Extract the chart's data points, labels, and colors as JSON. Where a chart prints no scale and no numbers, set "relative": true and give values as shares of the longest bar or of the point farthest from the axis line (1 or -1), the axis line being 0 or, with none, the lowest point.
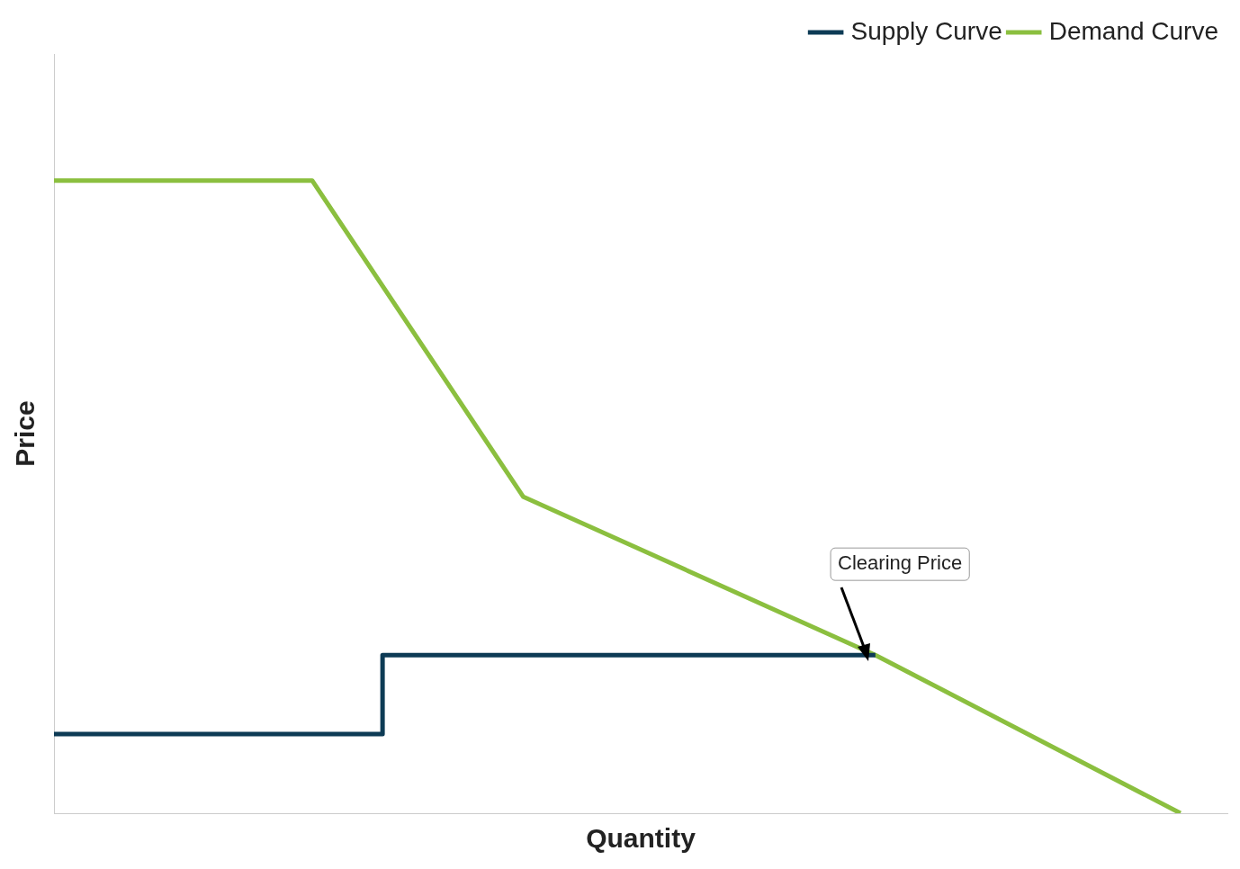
{
  "chart_data": {
    "type": "line",
    "xlabel": "Quantity",
    "ylabel": "Price",
    "relative": true,
    "legend": "top right",
    "grid": false,
    "categories": [
      null,
      null,
      null,
      null,
      null,
      null,
      null,
      null,
      null,
      null,
      null,
      null,
      null,
      null,
      null,
      null,
      null,
      null,
      null,
      null,
      null,
      null,
      null,
      null,
      null,
      null,
      null,
      null,
      null,
      null,
      null,
      null,
      null,
      null,
      null,
      null,
      null,
      null,
      null,
      null,
      null,
      null,
      null,
      null,
      null,
      null,
      null,
      null,
      null,
      null,
      null
    ],
    "series": [
      {
        "name": "Supply Curve",
        "type": "step",
        "color": "#0d3b55",
        "values": [
          0.125,
          null,
          null,
          null,
          null,
          null,
          null,
          null,
          null,
          null,
          null,
          null,
          null,
          null,
          0.25,
          null,
          null,
          null,
          null,
          null,
          null,
          null,
          null,
          null,
          null,
          null,
          null,
          null,
          null,
          null,
          null,
          null,
          null,
          null,
          null,
          0.25,
          null,
          null,
          null,
          null,
          null,
          null,
          null,
          null,
          null,
          null,
          null,
          null,
          null,
          null,
          null
        ]
      },
      {
        "name": "Demand Curve",
        "type": "line",
        "color": "#8bbf3f",
        "values": [
          1,
          null,
          null,
          null,
          null,
          null,
          null,
          null,
          null,
          null,
          null,
          1,
          null,
          null,
          null,
          null,
          null,
          null,
          null,
          null,
          0.5,
          null,
          null,
          null,
          null,
          null,
          null,
          null,
          null,
          null,
          null,
          null,
          null,
          null,
          null,
          0.25,
          null,
          null,
          null,
          null,
          null,
          null,
          null,
          null,
          null,
          null,
          null,
          null,
          0,
          null,
          null
        ]
      }
    ],
    "annotations": [
      "Clearing Price"
    ]
  }
}
